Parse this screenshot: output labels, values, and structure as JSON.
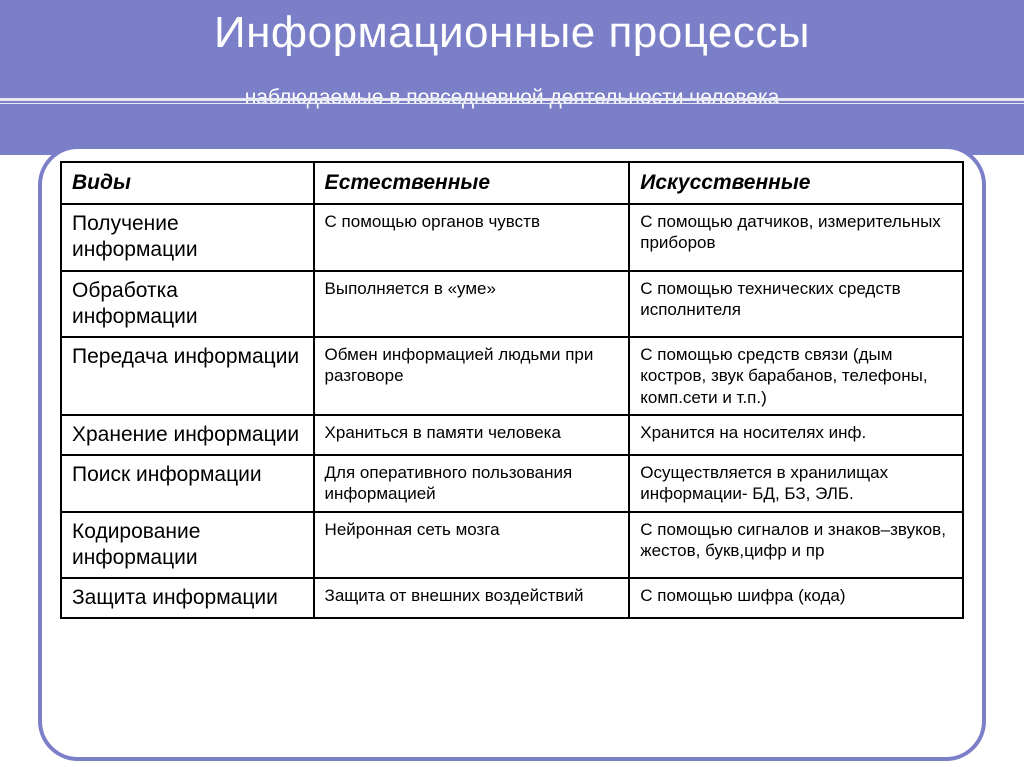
{
  "title": "Информационные процессы",
  "subtitle": "наблюдаемые в повседневной деятельности человека",
  "colors": {
    "accent": "#7a7fc8",
    "header_text": "#ffffff",
    "border": "#000000",
    "body_text": "#000000",
    "underline": "#e8e8f4"
  },
  "table": {
    "columns": [
      "Виды",
      "Естественные",
      "Искусственные"
    ],
    "col_widths_pct": [
      28,
      35,
      37
    ],
    "header_fontsize": 21,
    "type_fontsize": 21,
    "data_fontsize": 17,
    "rows": [
      {
        "type": "Получение информации",
        "natural": "С помощью органов чувств",
        "artificial": "С помощью датчиков, измерительных приборов"
      },
      {
        "type": "Обработка информации",
        "natural": "Выполняется в «уме»",
        "artificial": "С помощью технических средств исполнителя"
      },
      {
        "type": "Передача информации",
        "natural": "Обмен информацией людьми при разговоре",
        "artificial": "С помощью средств связи (дым костров, звук барабанов,\nтелефоны, комп.сети и т.п.)"
      },
      {
        "type": "Хранение информации",
        "natural": "Храниться в памяти человека",
        "artificial": "Хранится на носителях инф."
      },
      {
        "type": "Поиск информации",
        "natural": "Для оперативного пользования информацией",
        "artificial": "Осуществляется в хранилищах информации- БД, БЗ, ЭЛБ."
      },
      {
        "type": "Кодирование информации",
        "natural": "Нейронная сеть мозга",
        "artificial": "С помощью сигналов и знаков–звуков, жестов, букв,цифр и пр"
      },
      {
        "type": "Защита информации",
        "natural": "Защита от внешних воздействий",
        "artificial": "С помощью шифра (кода)"
      }
    ]
  }
}
